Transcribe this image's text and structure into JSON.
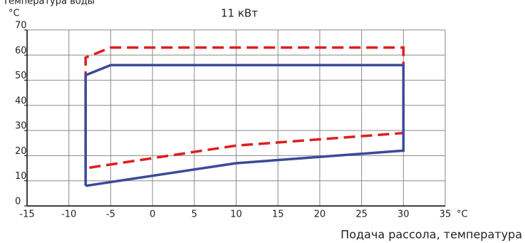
{
  "chart_data": {
    "type": "line",
    "title": "11 кВт",
    "y_label": "Температура воды",
    "y_unit": "°C",
    "x_label": "Подача рассола, температура",
    "x_unit": "°C",
    "xlim": [
      -15,
      35
    ],
    "xticks": [
      -15,
      -10,
      -5,
      0,
      5,
      10,
      15,
      20,
      25,
      30,
      35
    ],
    "ylim": [
      0,
      70
    ],
    "yticks": [
      0,
      10,
      20,
      30,
      40,
      50,
      60,
      70
    ],
    "grid": true,
    "series": [
      {
        "color": "#dd1f1f",
        "dashed": true,
        "x": [
          -8,
          -8,
          -5,
          30,
          30,
          10,
          -8
        ],
        "values": [
          15,
          59,
          63,
          63,
          29,
          24,
          15
        ]
      },
      {
        "color": "#3d4a9a",
        "dashed": false,
        "x": [
          -8,
          -8,
          -5,
          30,
          30,
          10,
          -8
        ],
        "values": [
          8,
          52,
          56,
          56,
          22,
          17,
          8
        ]
      }
    ]
  }
}
